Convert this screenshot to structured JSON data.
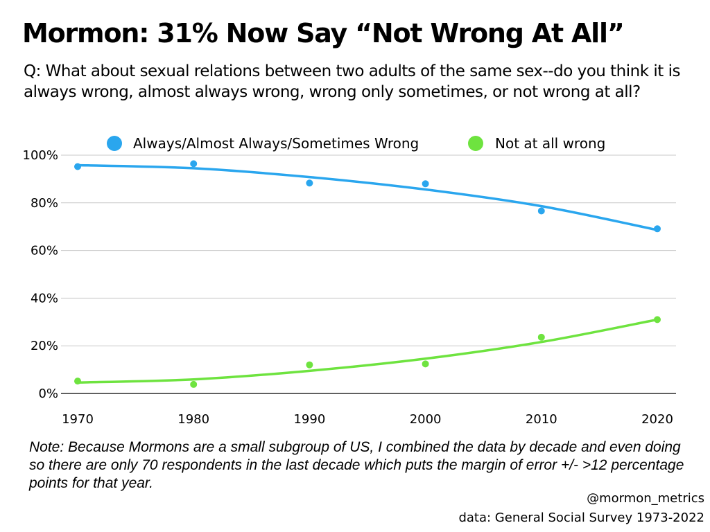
{
  "title": "Mormon: 31% Now Say “Not Wrong At All”",
  "question": "Q: What about sexual relations between two adults of the same sex--do you think it is always wrong, almost always wrong, wrong only sometimes, or not wrong at all?",
  "note": "Note: Because Mormons are a small subgroup of US, I combined the data by decade and even doing so there are only 70 respondents in the last decade which puts the margin of error +/- >12 percentage points for that year.",
  "credit": {
    "handle": "@mormon_metrics",
    "source": "data: General Social Survey 1973-2022"
  },
  "chart_data": {
    "type": "scatter",
    "title": "Mormon: 31% Now Say “Not Wrong At All”",
    "xlabel": "",
    "ylabel": "",
    "x": [
      1970,
      1980,
      1990,
      2000,
      2010,
      2020
    ],
    "x_tick_labels": [
      "1970",
      "1980",
      "1990",
      "2000",
      "2010",
      "2020"
    ],
    "y_ticks": [
      0,
      20,
      40,
      60,
      80,
      100
    ],
    "y_tick_labels": [
      "0%",
      "20%",
      "40%",
      "60%",
      "80%",
      "100%"
    ],
    "ylim": [
      0,
      100
    ],
    "xlim": [
      1970,
      2020
    ],
    "grid": "horizontal",
    "legend_position": "top",
    "trendline": "smoothed fit per series",
    "series": [
      {
        "name": "Always/Almost Always/Sometimes Wrong",
        "color": "#2aa6ee",
        "values": [
          95.2,
          96.4,
          88.3,
          88.0,
          76.6,
          69.1
        ],
        "trend": [
          95.8,
          94.5,
          90.8,
          85.6,
          78.6,
          68.6
        ]
      },
      {
        "name": "Not at all wrong",
        "color": "#6ee33f",
        "values": [
          5.2,
          3.8,
          12.0,
          12.4,
          23.6,
          31.0
        ],
        "trend": [
          4.6,
          5.9,
          9.5,
          14.6,
          21.6,
          31.0
        ]
      }
    ]
  }
}
